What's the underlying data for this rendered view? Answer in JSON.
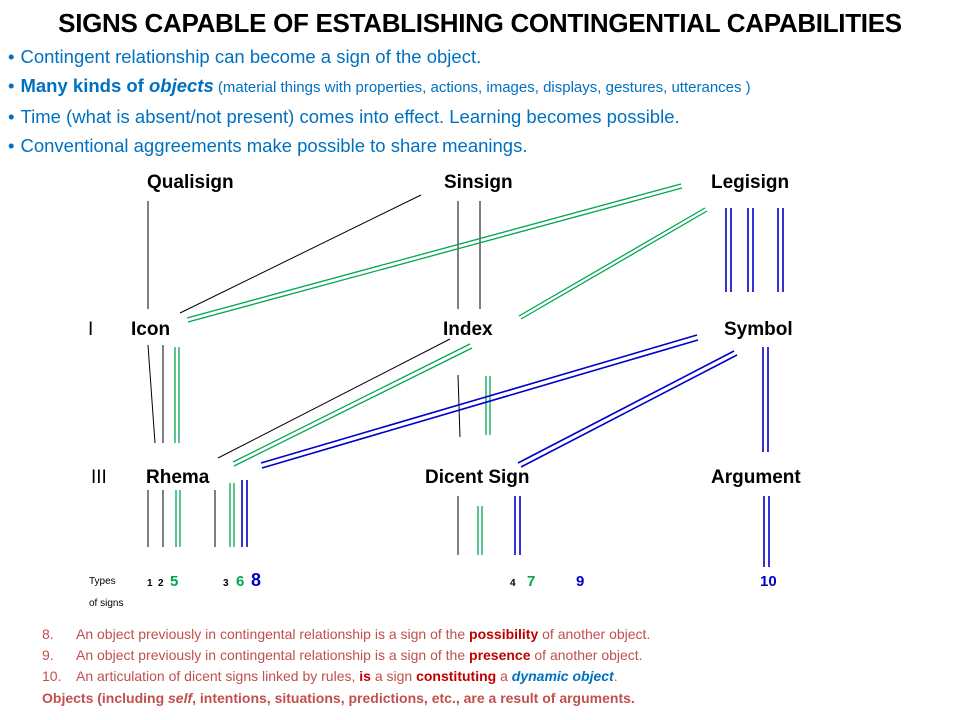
{
  "title": "SIGNS CAPABLE OF ESTABLISHING CONTINGENTIAL CAPABILITIES",
  "bullets": {
    "b1": "Contingent relationship can become a sign of the object.",
    "b2_bold": "Many kinds of ",
    "b2_italic": "objects",
    "b2_small": " (material things with properties, actions, images, displays, gestures, utterances )",
    "b3": "Time (what is absent/not present) comes into effect. Learning becomes possible.",
    "b4": "Conventional aggreements make possible to share meanings."
  },
  "nodes": {
    "qualisign": "Qualisign",
    "sinsign": "Sinsign",
    "legisign": "Legisign",
    "icon": "Icon",
    "index": "Index",
    "symbol": "Symbol",
    "rhema": "Rhema",
    "dicent": "Dicent Sign",
    "argument": "Argument"
  },
  "row_labels": {
    "row1": "I",
    "row3": "III"
  },
  "types": {
    "label1": "Types",
    "label2": "of signs",
    "t1": "1",
    "t2": "2",
    "t5": "5",
    "t3": "3",
    "t6": "6",
    "t8": "8",
    "t4": "4",
    "t7": "7",
    "t9": "9",
    "t10": "10"
  },
  "colors": {
    "green": "#00a650",
    "blue": "#0000cc",
    "text_blue": "#0070c0",
    "note_red": "#c0504d"
  },
  "notes": {
    "n8_num": "8.",
    "n8_a": "An object previously in contingental relationship is a sign of the ",
    "n8_b": "possibility",
    "n8_c": " of another object.",
    "n9_num": "9.",
    "n9_a": "An object previously in contingental relationship is a sign of the ",
    "n9_b": "presence",
    "n9_c": " of another object.",
    "n10_num": "10.",
    "n10_a": "An articulation of dicent signs linked by rules, ",
    "n10_b": "is",
    "n10_c": " a sign ",
    "n10_d": "constituting",
    "n10_e": " a ",
    "n10_f": "dynamic object",
    "n10_g": ".",
    "last_a": "Objects (including ",
    "last_b": "self",
    "last_c": ", intentions, situations, predictions, etc., are a result of arguments."
  }
}
